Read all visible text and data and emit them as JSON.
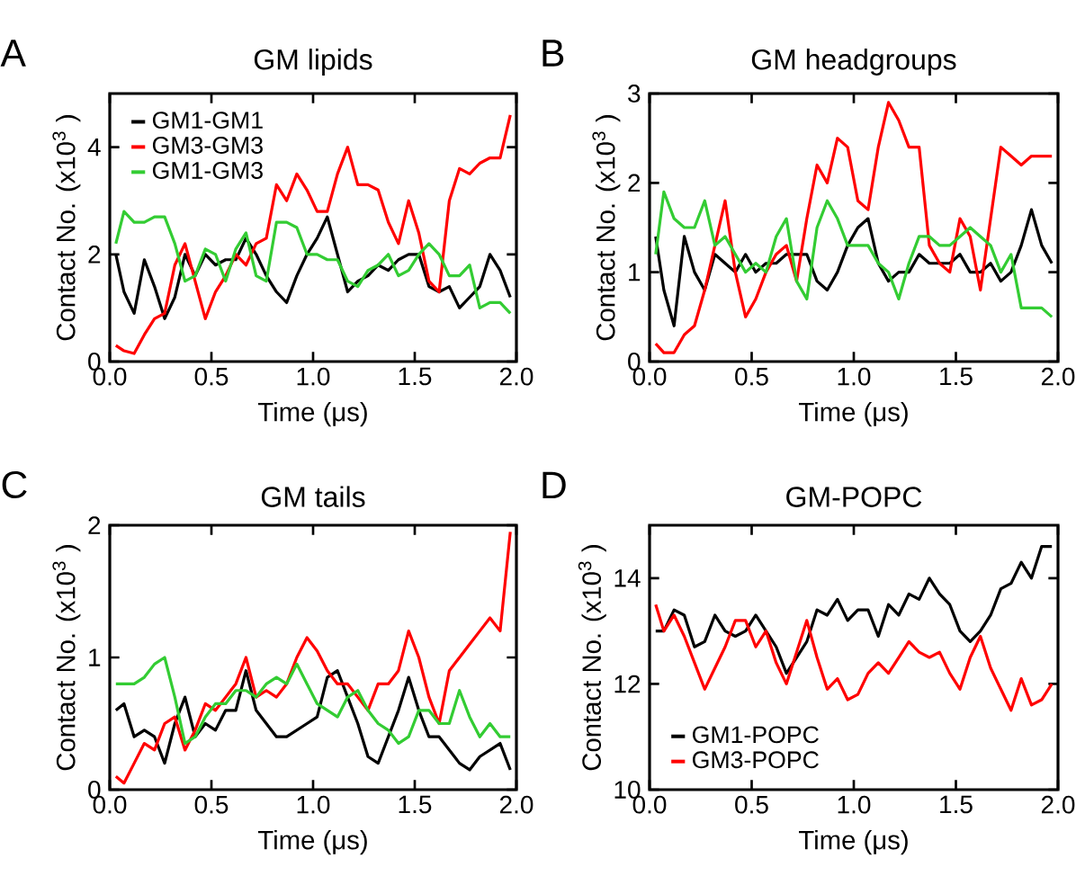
{
  "chart_data": [
    {
      "type": "line",
      "title": "GM lipids",
      "xlabel": "Time (μs)",
      "ylabel": "Contact No. (x10$^{3}$ )",
      "annotations": [
        "A"
      ],
      "x": [
        0.03,
        0.07,
        0.12,
        0.17,
        0.22,
        0.27,
        0.32,
        0.37,
        0.42,
        0.47,
        0.52,
        0.57,
        0.62,
        0.67,
        0.72,
        0.77,
        0.82,
        0.87,
        0.92,
        0.97,
        1.02,
        1.07,
        1.12,
        1.17,
        1.22,
        1.27,
        1.32,
        1.37,
        1.42,
        1.47,
        1.52,
        1.57,
        1.62,
        1.67,
        1.72,
        1.77,
        1.82,
        1.87,
        1.92,
        1.97
      ],
      "series": [
        {
          "name": "GM1-GM1",
          "color": "#000000",
          "values": [
            2.0,
            1.3,
            0.9,
            1.9,
            1.4,
            0.8,
            1.2,
            2.0,
            1.6,
            2.0,
            1.8,
            1.9,
            1.9,
            2.3,
            2.0,
            1.6,
            1.3,
            1.1,
            1.6,
            2.0,
            2.3,
            2.7,
            2.0,
            1.3,
            1.5,
            1.6,
            1.8,
            1.7,
            1.9,
            2.0,
            2.0,
            1.4,
            1.3,
            1.4,
            1.0,
            1.2,
            1.4,
            2.0,
            1.7,
            1.2
          ]
        },
        {
          "name": "GM3-GM3",
          "color": "#ff0000",
          "values": [
            0.3,
            0.2,
            0.15,
            0.5,
            0.8,
            0.9,
            1.8,
            2.2,
            1.5,
            0.8,
            1.3,
            1.6,
            2.0,
            1.8,
            2.2,
            2.3,
            3.3,
            3.0,
            3.5,
            3.2,
            2.8,
            2.8,
            3.5,
            4.0,
            3.3,
            3.3,
            3.2,
            2.6,
            2.2,
            3.0,
            2.4,
            1.5,
            1.3,
            3.0,
            3.6,
            3.5,
            3.7,
            3.8,
            3.8,
            4.6
          ]
        },
        {
          "name": "GM1-GM3",
          "color": "#33cc33",
          "values": [
            2.2,
            2.8,
            2.6,
            2.6,
            2.7,
            2.7,
            2.2,
            1.5,
            1.6,
            2.1,
            2.0,
            1.5,
            2.1,
            2.4,
            1.6,
            1.5,
            2.6,
            2.6,
            2.5,
            2.0,
            2.0,
            1.9,
            1.9,
            1.5,
            1.4,
            1.7,
            1.8,
            2.0,
            1.6,
            1.7,
            2.0,
            2.2,
            2.0,
            1.6,
            1.6,
            1.8,
            1.0,
            1.1,
            1.1,
            0.9
          ]
        }
      ],
      "xlim": [
        0,
        2
      ],
      "xticks": [
        {
          "value": 0,
          "label": "0.0"
        },
        {
          "value": 0.5,
          "label": "0.5"
        },
        {
          "value": 1,
          "label": "1.0"
        },
        {
          "value": 1.5,
          "label": "1.5"
        },
        {
          "value": 2,
          "label": "2.0"
        }
      ],
      "ylim": [
        0,
        5
      ],
      "yticks": [
        0,
        2,
        4
      ],
      "legend": "top left",
      "grid": false
    },
    {
      "type": "line",
      "title": "GM headgroups",
      "xlabel": "Time (μs)",
      "ylabel": "Contact No. (x10$^{3}$ )",
      "annotations": [
        "B"
      ],
      "x": [
        0.03,
        0.07,
        0.12,
        0.17,
        0.22,
        0.27,
        0.32,
        0.37,
        0.42,
        0.47,
        0.52,
        0.57,
        0.62,
        0.67,
        0.72,
        0.77,
        0.82,
        0.87,
        0.92,
        0.97,
        1.02,
        1.07,
        1.12,
        1.17,
        1.22,
        1.27,
        1.32,
        1.37,
        1.42,
        1.47,
        1.52,
        1.57,
        1.62,
        1.67,
        1.72,
        1.77,
        1.82,
        1.87,
        1.92,
        1.97
      ],
      "series": [
        {
          "color": "#000000",
          "values": [
            1.4,
            0.8,
            0.4,
            1.4,
            1.0,
            0.8,
            1.2,
            1.1,
            1.0,
            1.2,
            1.0,
            1.1,
            1.1,
            1.2,
            1.2,
            1.2,
            0.9,
            0.8,
            1.0,
            1.3,
            1.5,
            1.6,
            1.1,
            0.9,
            1.0,
            1.0,
            1.2,
            1.1,
            1.1,
            1.1,
            1.2,
            1.0,
            1.0,
            1.1,
            0.9,
            1.0,
            1.3,
            1.7,
            1.3,
            1.1
          ]
        },
        {
          "color": "#ff0000",
          "values": [
            0.2,
            0.1,
            0.1,
            0.3,
            0.4,
            0.8,
            1.3,
            1.8,
            1.0,
            0.5,
            0.7,
            1.0,
            1.2,
            1.3,
            0.9,
            1.6,
            2.2,
            2.0,
            2.5,
            2.4,
            1.8,
            1.7,
            2.4,
            2.9,
            2.7,
            2.4,
            2.4,
            1.3,
            1.1,
            1.0,
            1.6,
            1.4,
            0.8,
            1.6,
            2.4,
            2.3,
            2.2,
            2.3,
            2.3,
            2.3
          ]
        },
        {
          "color": "#33cc33",
          "values": [
            1.2,
            1.9,
            1.6,
            1.5,
            1.5,
            1.8,
            1.3,
            1.4,
            1.2,
            1.0,
            1.1,
            1.0,
            1.4,
            1.6,
            0.9,
            0.7,
            1.5,
            1.8,
            1.6,
            1.3,
            1.3,
            1.3,
            1.1,
            1.0,
            0.7,
            1.1,
            1.4,
            1.4,
            1.3,
            1.3,
            1.4,
            1.5,
            1.4,
            1.3,
            1.0,
            1.2,
            0.6,
            0.6,
            0.6,
            0.5
          ]
        }
      ],
      "xlim": [
        0,
        2
      ],
      "xticks": [
        {
          "value": 0,
          "label": "0.0"
        },
        {
          "value": 0.5,
          "label": "0.5"
        },
        {
          "value": 1,
          "label": "1.0"
        },
        {
          "value": 1.5,
          "label": "1.5"
        },
        {
          "value": 2,
          "label": "2.0"
        }
      ],
      "ylim": [
        0,
        3
      ],
      "yticks": [
        0,
        1,
        2,
        3
      ],
      "grid": false
    },
    {
      "type": "line",
      "title": "GM tails",
      "xlabel": "Time (μs)",
      "ylabel": "Contact No. (x10$^{3}$ )",
      "annotations": [
        "C"
      ],
      "x": [
        0.03,
        0.07,
        0.12,
        0.17,
        0.22,
        0.27,
        0.32,
        0.37,
        0.42,
        0.47,
        0.52,
        0.57,
        0.62,
        0.67,
        0.72,
        0.77,
        0.82,
        0.87,
        0.92,
        0.97,
        1.02,
        1.07,
        1.12,
        1.17,
        1.22,
        1.27,
        1.32,
        1.37,
        1.42,
        1.47,
        1.52,
        1.57,
        1.62,
        1.67,
        1.72,
        1.77,
        1.82,
        1.87,
        1.92,
        1.97
      ],
      "series": [
        {
          "color": "#000000",
          "values": [
            0.6,
            0.65,
            0.4,
            0.45,
            0.4,
            0.2,
            0.5,
            0.7,
            0.4,
            0.5,
            0.45,
            0.6,
            0.6,
            0.9,
            0.6,
            0.5,
            0.4,
            0.4,
            0.45,
            0.5,
            0.55,
            0.85,
            0.9,
            0.7,
            0.5,
            0.25,
            0.2,
            0.4,
            0.6,
            0.85,
            0.6,
            0.4,
            0.4,
            0.3,
            0.2,
            0.15,
            0.25,
            0.3,
            0.35,
            0.15
          ]
        },
        {
          "color": "#ff0000",
          "values": [
            0.1,
            0.05,
            0.2,
            0.35,
            0.3,
            0.5,
            0.55,
            0.3,
            0.45,
            0.65,
            0.6,
            0.7,
            0.8,
            1.0,
            0.7,
            0.75,
            0.7,
            0.8,
            1.0,
            1.15,
            1.05,
            0.9,
            0.8,
            0.8,
            0.7,
            0.6,
            0.8,
            0.8,
            0.9,
            1.2,
            1.0,
            0.7,
            0.5,
            0.9,
            1.0,
            1.1,
            1.2,
            1.3,
            1.2,
            1.95
          ]
        },
        {
          "color": "#33cc33",
          "values": [
            0.8,
            0.8,
            0.8,
            0.85,
            0.95,
            1.0,
            0.7,
            0.35,
            0.4,
            0.55,
            0.65,
            0.65,
            0.75,
            0.75,
            0.7,
            0.8,
            0.85,
            0.8,
            0.95,
            0.8,
            0.65,
            0.6,
            0.55,
            0.7,
            0.75,
            0.6,
            0.5,
            0.45,
            0.35,
            0.4,
            0.6,
            0.6,
            0.5,
            0.5,
            0.75,
            0.55,
            0.4,
            0.5,
            0.4,
            0.4
          ]
        }
      ],
      "xlim": [
        0,
        2
      ],
      "xticks": [
        {
          "value": 0,
          "label": "0.0"
        },
        {
          "value": 0.5,
          "label": "0.5"
        },
        {
          "value": 1,
          "label": "1.0"
        },
        {
          "value": 1.5,
          "label": "1.5"
        },
        {
          "value": 2,
          "label": "2.0"
        }
      ],
      "ylim": [
        0,
        2
      ],
      "yticks": [
        0,
        1,
        2
      ],
      "grid": false
    },
    {
      "type": "line",
      "title": "GM-POPC",
      "xlabel": "Time (μs)",
      "ylabel": "Contact No. (x10$^{3}$ )",
      "annotations": [
        "D"
      ],
      "x": [
        0.03,
        0.07,
        0.12,
        0.17,
        0.22,
        0.27,
        0.32,
        0.37,
        0.42,
        0.47,
        0.52,
        0.57,
        0.62,
        0.67,
        0.72,
        0.77,
        0.82,
        0.87,
        0.92,
        0.97,
        1.02,
        1.07,
        1.12,
        1.17,
        1.22,
        1.27,
        1.32,
        1.37,
        1.42,
        1.47,
        1.52,
        1.57,
        1.62,
        1.67,
        1.72,
        1.77,
        1.82,
        1.87,
        1.92,
        1.97
      ],
      "series": [
        {
          "name": "GM1-POPC",
          "color": "#000000",
          "values": [
            13.0,
            13.0,
            13.4,
            13.3,
            12.7,
            12.8,
            13.3,
            13.0,
            12.9,
            13.0,
            13.3,
            13.0,
            12.7,
            12.2,
            12.5,
            12.8,
            13.4,
            13.3,
            13.6,
            13.2,
            13.4,
            13.4,
            12.9,
            13.5,
            13.3,
            13.7,
            13.6,
            14.0,
            13.7,
            13.5,
            13.0,
            12.8,
            13.0,
            13.3,
            13.8,
            13.9,
            14.3,
            14.0,
            14.6,
            14.6
          ]
        },
        {
          "name": "GM3-POPC",
          "color": "#ff0000",
          "values": [
            13.5,
            13.0,
            13.3,
            12.9,
            12.4,
            11.9,
            12.3,
            12.7,
            13.2,
            13.2,
            12.7,
            13.0,
            12.4,
            12.0,
            12.6,
            13.2,
            12.5,
            11.9,
            12.1,
            11.7,
            11.8,
            12.2,
            12.4,
            12.2,
            12.5,
            12.8,
            12.6,
            12.5,
            12.6,
            12.2,
            11.9,
            12.5,
            12.9,
            12.3,
            11.9,
            11.5,
            12.1,
            11.6,
            11.7,
            12.0
          ]
        }
      ],
      "xlim": [
        0,
        2
      ],
      "xticks": [
        {
          "value": 0,
          "label": "0.0"
        },
        {
          "value": 0.5,
          "label": "0.5"
        },
        {
          "value": 1,
          "label": "1.0"
        },
        {
          "value": 1.5,
          "label": "1.5"
        },
        {
          "value": 2,
          "label": "2.0"
        }
      ],
      "ylim": [
        10,
        15
      ],
      "yticks": [
        10,
        12,
        14
      ],
      "legend": "bottom left",
      "grid": false
    }
  ]
}
